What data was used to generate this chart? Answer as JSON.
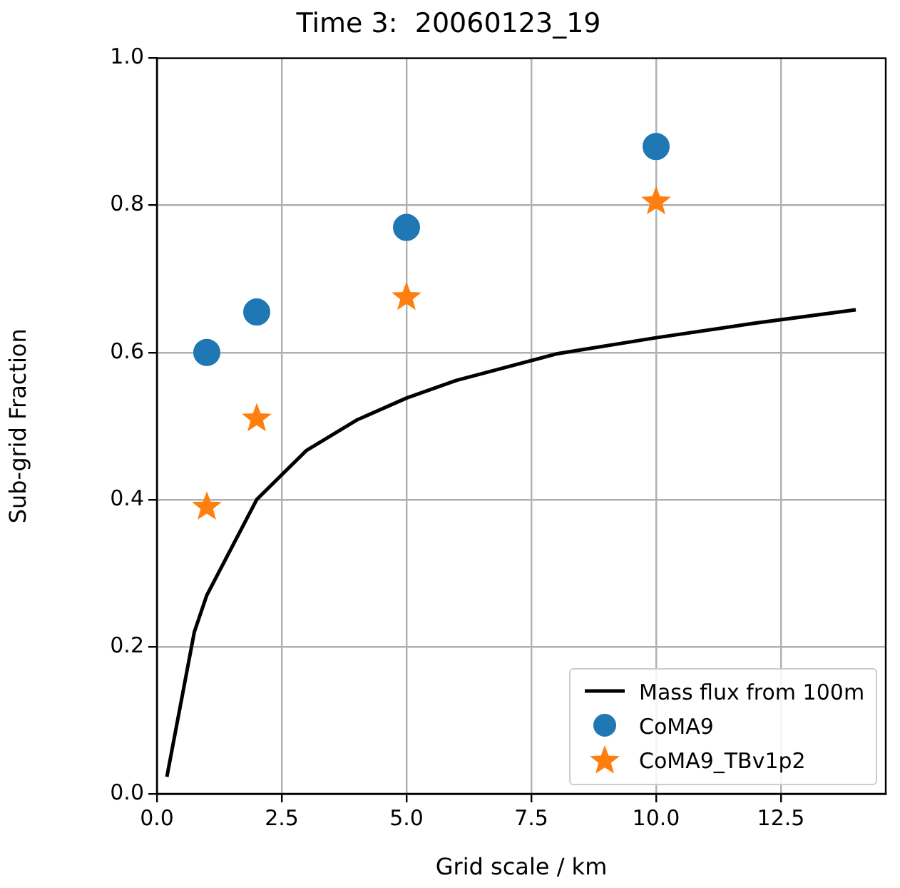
{
  "chart_data": {
    "type": "scatter",
    "title": "Time 3:  20060123_19",
    "xlabel": "Grid scale / km",
    "ylabel": "Sub-grid Fraction",
    "series": [
      {
        "name": "Mass flux from 100m",
        "type": "line",
        "color": "#000000",
        "marker": "none",
        "x": [
          0.2,
          0.75,
          1,
          2,
          3,
          4,
          5,
          6,
          7,
          8,
          10,
          12,
          14
        ],
        "values": [
          0.023,
          0.22,
          0.27,
          0.4,
          0.467,
          0.508,
          0.538,
          0.562,
          0.58,
          0.598,
          0.62,
          0.64,
          0.658
        ]
      },
      {
        "name": "CoMA9",
        "type": "scatter",
        "color": "#1f77b4",
        "marker": "circle",
        "x": [
          1,
          2,
          5,
          10
        ],
        "values": [
          0.6,
          0.655,
          0.77,
          0.88
        ]
      },
      {
        "name": "CoMA9_TBv1p2",
        "type": "scatter",
        "color": "#ff7f0e",
        "marker": "star",
        "x": [
          1,
          2,
          5,
          10
        ],
        "values": [
          0.39,
          0.51,
          0.675,
          0.805
        ]
      }
    ],
    "xlim": [
      0,
      14.6
    ],
    "xticks": [
      {
        "value": 0,
        "label": "0.0"
      },
      2.5,
      {
        "value": 5,
        "label": "5.0"
      },
      7.5,
      {
        "value": 10,
        "label": "10.0"
      },
      12.5
    ],
    "ylim": [
      0,
      1
    ],
    "yticks": [
      {
        "value": 0,
        "label": "0.0"
      },
      0.2,
      0.4,
      0.6,
      0.8,
      {
        "value": 1,
        "label": "1.0"
      }
    ],
    "grid": true,
    "legend": "bottom right"
  }
}
